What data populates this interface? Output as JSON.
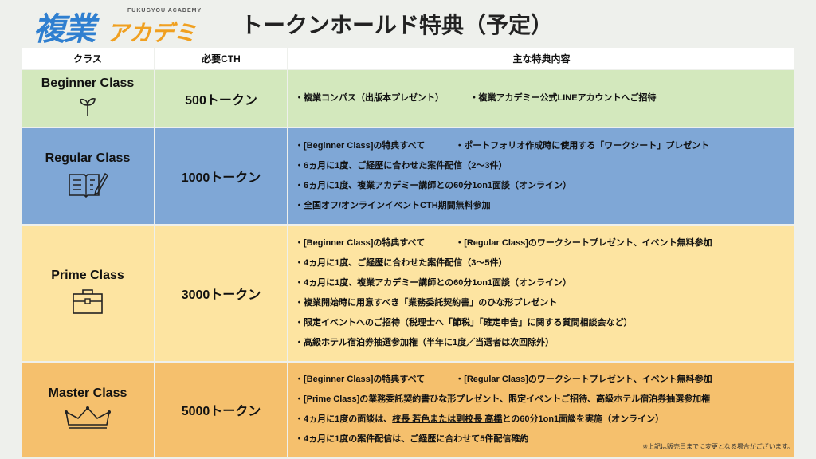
{
  "logo": {
    "kanji": "複業",
    "kana": "アカデミー",
    "english": "FUKUGYOU ACADEMY"
  },
  "title": "トークンホールド特典（予定）",
  "headers": {
    "class": "クラス",
    "cth": "必要CTH",
    "benefits": "主な特典内容"
  },
  "colors": {
    "beginner": "#d3e8bd",
    "regular": "#7fa7d6",
    "prime": "#fde4a1",
    "master": "#f5c06d"
  },
  "tiers": [
    {
      "name": "Beginner Class",
      "cth": "500トークン",
      "icon": "sprout-icon",
      "lines": [
        [
          "・複業コンパス（出版本プレゼント）",
          "・複業アカデミー公式LINEアカウントへご招待"
        ]
      ]
    },
    {
      "name": "Regular Class",
      "cth": "1000トークン",
      "icon": "book-pen-icon",
      "lines": [
        [
          "・[Beginner Class]の特典すべて",
          "・ポートフォリオ作成時に使用する「ワークシート」プレゼント"
        ],
        [
          "・6ヵ月に1度、ご経歴に合わせた案件配信（2〜3件）"
        ],
        [
          "・6ヵ月に1度、複業アカデミー講師との60分1on1面談（オンライン）"
        ],
        [
          "・全国オフ/オンラインイベントCTH期間無料参加"
        ]
      ]
    },
    {
      "name": "Prime Class",
      "cth": "3000トークン",
      "icon": "briefcase-icon",
      "lines": [
        [
          "・[Beginner Class]の特典すべて",
          "・[Regular Class]のワークシートプレゼント、イベント無料参加"
        ],
        [
          "・4ヵ月に1度、ご経歴に合わせた案件配信（3〜5件）"
        ],
        [
          "・4ヵ月に1度、複業アカデミー講師との60分1on1面談（オンライン）"
        ],
        [
          "・複業開始時に用意すべき「業務委託契約書」のひな形プレゼント"
        ],
        [
          "・限定イベントへのご招待（税理士へ「節税」「確定申告」に関する質問相談会など）"
        ],
        [
          "・高級ホテル宿泊券抽選参加権（半年に1度／当選者は次回除外）"
        ]
      ]
    },
    {
      "name": "Master Class",
      "cth": "5000トークン",
      "icon": "crown-icon",
      "lines": [
        [
          "・[Beginner Class]の特典すべて",
          "・[Regular Class]のワークシートプレゼント、イベント無料参加"
        ],
        [
          "・[Prime Class]の業務委託契約書ひな形プレゼント、限定イベントご招待、高級ホテル宿泊券抽選参加権"
        ],
        [
          "・4ヵ月に1度の面談は、",
          "校長 若色または副校長 高橋",
          "との60分1on1面談を実施（オンライン）"
        ],
        [
          "・4ヵ月に1度の案件配信は、ご経歴に合わせて5件配信確約"
        ]
      ]
    }
  ],
  "note": "※上記は販売日までに変更となる場合がございます。"
}
